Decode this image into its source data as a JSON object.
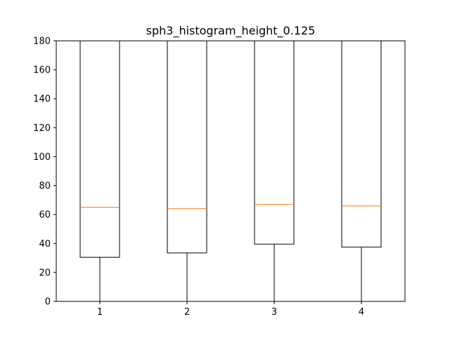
{
  "chart_data": {
    "type": "box",
    "title": "sph3_histogram_height_0.125",
    "xlabel": "",
    "ylabel": "",
    "categories": [
      "1",
      "2",
      "3",
      "4"
    ],
    "ylim": [
      0,
      180
    ],
    "yticks": [
      0,
      20,
      40,
      60,
      80,
      100,
      120,
      140,
      160,
      180
    ],
    "grid": false,
    "boxes": [
      {
        "category": "1",
        "whisker_low": 0,
        "q1": 30.5,
        "median": 65,
        "q3": 180,
        "whisker_high": 180
      },
      {
        "category": "2",
        "whisker_low": 0,
        "q1": 33.5,
        "median": 64,
        "q3": 180,
        "whisker_high": 180
      },
      {
        "category": "3",
        "whisker_low": 0,
        "q1": 39.5,
        "median": 67,
        "q3": 180,
        "whisker_high": 180
      },
      {
        "category": "4",
        "whisker_low": 0,
        "q1": 37.5,
        "median": 66,
        "q3": 180,
        "whisker_high": 180
      }
    ],
    "colors": {
      "box": "#000000",
      "median": "#ff7f0e",
      "axes": "#000000"
    }
  }
}
